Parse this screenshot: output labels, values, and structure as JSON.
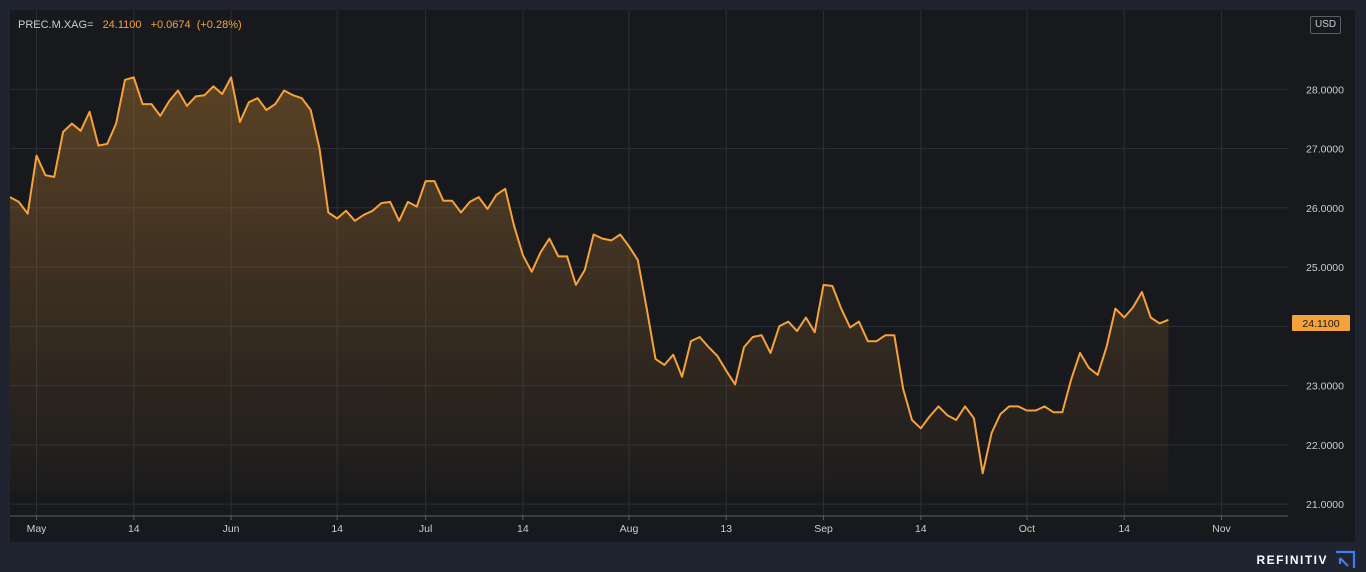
{
  "header": {
    "symbol": "PREC.M.XAG=",
    "last": "24.1100",
    "change": "+0.0674",
    "change_pct": "(+0.28%)"
  },
  "currency": "USD",
  "brand": "REFINITIV",
  "colors": {
    "background": "#18191c",
    "line": "#f5a23a",
    "grid": "#2b2e33",
    "axis_text": "#c9ccd1",
    "price_tag": "#f5a23a"
  },
  "chart_data": {
    "type": "area",
    "title": "",
    "xlabel": "",
    "ylabel": "",
    "ylim": [
      20.8,
      29.0
    ],
    "y_ticks": [
      "21.0000",
      "22.0000",
      "23.0000",
      "24.0000",
      "25.0000",
      "26.0000",
      "27.0000",
      "28.0000"
    ],
    "x_tick_labels": [
      "May",
      "14",
      "Jun",
      "14",
      "Jul",
      "14",
      "Aug",
      "13",
      "Sep",
      "14",
      "Oct",
      "14",
      "Nov"
    ],
    "x_tick_index": [
      3,
      14,
      25,
      37,
      47,
      58,
      70,
      81,
      92,
      103,
      115,
      126,
      137
    ],
    "x_range": [
      0,
      140
    ],
    "last_price_label": "24.1100",
    "grid": true,
    "series": [
      {
        "values": [
          26.18,
          26.1,
          25.9,
          26.88,
          26.55,
          26.52,
          27.28,
          27.42,
          27.3,
          27.62,
          27.05,
          27.08,
          27.42,
          28.16,
          28.2,
          27.75,
          27.75,
          27.55,
          27.8,
          27.98,
          27.72,
          27.88,
          27.9,
          28.05,
          27.92,
          28.2,
          27.45,
          27.78,
          27.85,
          27.65,
          27.75,
          27.98,
          27.9,
          27.85,
          27.65,
          27.0,
          25.92,
          25.82,
          25.95,
          25.78,
          25.88,
          25.95,
          26.08,
          26.1,
          25.78,
          26.1,
          26.02,
          26.45,
          26.45,
          26.12,
          26.12,
          25.92,
          26.1,
          26.18,
          25.98,
          26.22,
          26.32,
          25.7,
          25.2,
          24.92,
          25.25,
          25.48,
          25.18,
          25.18,
          24.7,
          24.95,
          25.55,
          25.48,
          25.45,
          25.55,
          25.35,
          25.12,
          24.3,
          23.45,
          23.35,
          23.52,
          23.15,
          23.75,
          23.82,
          23.65,
          23.5,
          23.25,
          23.02,
          23.65,
          23.82,
          23.85,
          23.55,
          24.0,
          24.08,
          23.92,
          24.15,
          23.9,
          24.7,
          24.68,
          24.3,
          23.98,
          24.08,
          23.75,
          23.75,
          23.85,
          23.85,
          22.95,
          22.42,
          22.28,
          22.48,
          22.65,
          22.5,
          22.42,
          22.65,
          22.45,
          21.52,
          22.2,
          22.52,
          22.65,
          22.65,
          22.58,
          22.58,
          22.65,
          22.55,
          22.55,
          23.1,
          23.55,
          23.3,
          23.18,
          23.65,
          24.3,
          24.15,
          24.32,
          24.58,
          24.15,
          24.05,
          24.11
        ]
      }
    ]
  }
}
